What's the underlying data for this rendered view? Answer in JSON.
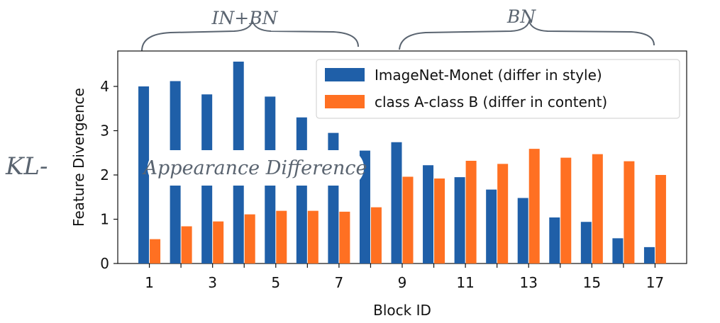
{
  "chart_data": {
    "type": "bar",
    "xlabel": "Block ID",
    "ylabel": "Feature Divergence",
    "ylim": [
      0,
      4.8
    ],
    "xlim": [
      0,
      18
    ],
    "x": [
      1,
      2,
      3,
      4,
      5,
      6,
      7,
      8,
      9,
      10,
      11,
      12,
      13,
      14,
      15,
      16,
      17
    ],
    "xticks": [
      1,
      3,
      5,
      7,
      9,
      11,
      13,
      15,
      17
    ],
    "yticks": [
      0,
      1,
      2,
      3,
      4
    ],
    "legend_position": "upper right",
    "grid": false,
    "series": [
      {
        "name": "ImageNet-Monet (differ in style)",
        "color": "#1f5fa8",
        "values": [
          4.0,
          4.12,
          3.82,
          4.56,
          3.77,
          3.3,
          2.95,
          2.55,
          2.74,
          2.22,
          1.95,
          1.67,
          1.48,
          1.04,
          0.94,
          0.57,
          0.37
        ]
      },
      {
        "name": "class A-class B (differ in content)",
        "color": "#ff7022",
        "values": [
          0.55,
          0.84,
          0.95,
          1.11,
          1.19,
          1.19,
          1.17,
          1.27,
          1.96,
          1.92,
          2.32,
          2.25,
          2.59,
          2.39,
          2.47,
          2.31,
          2.0
        ]
      }
    ]
  },
  "annotations": {
    "brace_left_label": "IN+BN",
    "brace_right_label": "BN",
    "side_prefix": "KL-",
    "overlay_text": "Appearance Difference"
  }
}
